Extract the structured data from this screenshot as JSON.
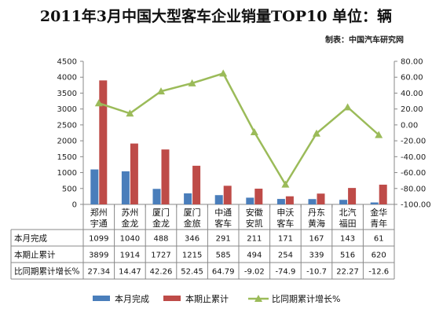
{
  "title": "2011年3月中国大型客车企业销量TOP10  单位：辆",
  "source": "制表：中国汽车研究网",
  "chart_data": {
    "type": "bar",
    "categories": [
      "郑州\n宇通",
      "苏州\n金龙",
      "厦门\n金龙",
      "厦门\n金旅",
      "中通\n客车",
      "安徽\n安凯",
      "申沃\n客车",
      "丹东\n黄海",
      "北汽\n福田",
      "金华\n青年"
    ],
    "series": [
      {
        "name": "本月完成",
        "kind": "bar",
        "axis": "left",
        "color": "#4a7ebb",
        "values": [
          1099,
          1040,
          488,
          346,
          291,
          211,
          171,
          167,
          143,
          61
        ],
        "labels": [
          "1099",
          "1040",
          "488",
          "346",
          "291",
          "211",
          "171",
          "167",
          "143",
          "61"
        ]
      },
      {
        "name": "本期止累计",
        "kind": "bar",
        "axis": "left",
        "color": "#be4b48",
        "values": [
          3899,
          1914,
          1727,
          1215,
          585,
          494,
          254,
          339,
          516,
          620
        ],
        "labels": [
          "3899",
          "1914",
          "1727",
          "1215",
          "585",
          "494",
          "254",
          "339",
          "516",
          "620"
        ]
      },
      {
        "name": "比同期累计增长%",
        "kind": "line",
        "axis": "right",
        "color": "#9bbb59",
        "values": [
          27.34,
          14.47,
          42.26,
          52.45,
          64.79,
          -9.02,
          -74.9,
          -10.7,
          22.27,
          -12.6
        ],
        "labels": [
          "27.34",
          "14.47",
          "42.26",
          "52.45",
          "64.79",
          "-9.02",
          "-74.9",
          "-10.7",
          "22.27",
          "-12.6"
        ]
      }
    ],
    "left_axis": {
      "min": 0,
      "max": 4500,
      "step": 500,
      "ticks": [
        "0",
        "500",
        "1000",
        "1500",
        "2000",
        "2500",
        "3000",
        "3500",
        "4000",
        "4500"
      ]
    },
    "right_axis": {
      "min": -100,
      "max": 80,
      "step": 20,
      "ticks": [
        "-100.00",
        "-80.00",
        "-60.00",
        "-40.00",
        "-20.00",
        "0.00",
        "20.00",
        "40.00",
        "60.00",
        "80.00"
      ]
    },
    "legend_position": "bottom",
    "grid": false
  }
}
